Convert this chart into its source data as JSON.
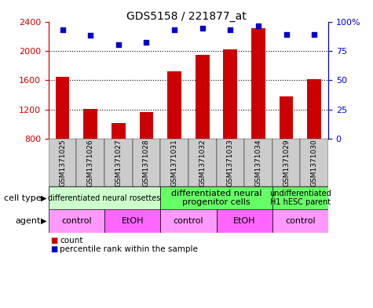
{
  "title": "GDS5158 / 221877_at",
  "samples": [
    "GSM1371025",
    "GSM1371026",
    "GSM1371027",
    "GSM1371028",
    "GSM1371031",
    "GSM1371032",
    "GSM1371033",
    "GSM1371034",
    "GSM1371029",
    "GSM1371030"
  ],
  "counts": [
    1640,
    1210,
    1010,
    1160,
    1720,
    1940,
    2020,
    2310,
    1380,
    1610
  ],
  "percentiles": [
    93,
    88,
    80,
    82,
    93,
    94,
    93,
    96,
    89,
    89
  ],
  "ymin": 800,
  "ymax": 2400,
  "yticks": [
    800,
    1200,
    1600,
    2000,
    2400
  ],
  "pct_ticks": [
    0,
    25,
    50,
    75,
    100
  ],
  "pct_tick_labels": [
    "0",
    "25",
    "50",
    "75",
    "100%"
  ],
  "bar_color": "#cc0000",
  "dot_color": "#0000cc",
  "cell_type_groups": [
    {
      "label": "differentiated neural rosettes",
      "start": 0,
      "end": 3,
      "color": "#ccffcc",
      "fontsize": 7
    },
    {
      "label": "differentiated neural\nprogenitor cells",
      "start": 4,
      "end": 7,
      "color": "#66ff66",
      "fontsize": 8
    },
    {
      "label": "undifferentiated\nH1 hESC parent",
      "start": 8,
      "end": 9,
      "color": "#66ff66",
      "fontsize": 7
    }
  ],
  "agent_groups": [
    {
      "label": "control",
      "start": 0,
      "end": 1,
      "color": "#ff99ff"
    },
    {
      "label": "EtOH",
      "start": 2,
      "end": 3,
      "color": "#ff66ff"
    },
    {
      "label": "control",
      "start": 4,
      "end": 5,
      "color": "#ff99ff"
    },
    {
      "label": "EtOH",
      "start": 6,
      "end": 7,
      "color": "#ff66ff"
    },
    {
      "label": "control",
      "start": 8,
      "end": 9,
      "color": "#ff99ff"
    }
  ],
  "cell_type_label": "cell type",
  "agent_label": "agent",
  "legend_count_color": "#cc0000",
  "legend_dot_color": "#0000cc"
}
